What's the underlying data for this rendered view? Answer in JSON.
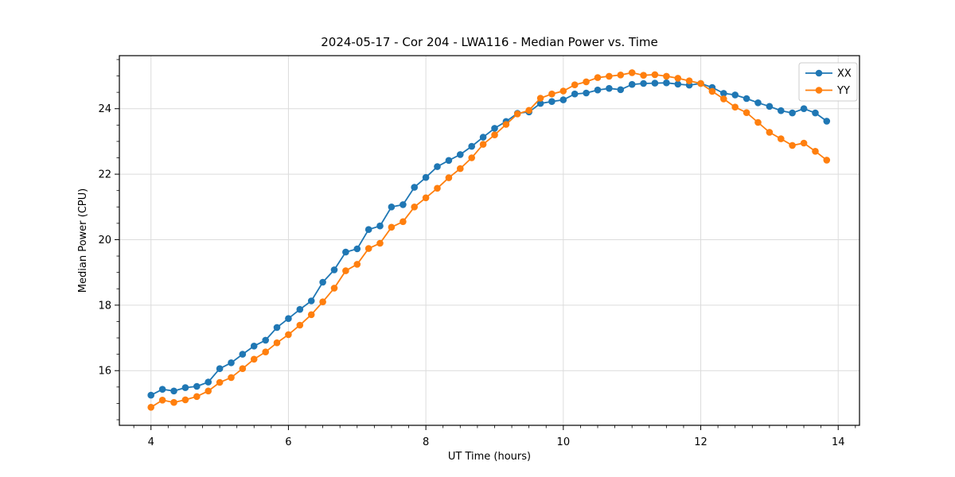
{
  "chart_data": {
    "type": "line",
    "title": "2024-05-17 - Cor 204 - LWA116 - Median Power vs. Time",
    "xlabel": "UT Time (hours)",
    "ylabel": "Median Power (CPU)",
    "xlim": [
      3.54,
      14.31
    ],
    "ylim": [
      14.33,
      25.62
    ],
    "xticks": [
      4,
      6,
      8,
      10,
      12,
      14
    ],
    "yticks": [
      16,
      18,
      20,
      22,
      24
    ],
    "x_minor_step": 0.25,
    "y_minor_step": 0.5,
    "grid": true,
    "legend_position": "upper right",
    "x": [
      4.0,
      4.167,
      4.333,
      4.5,
      4.667,
      4.833,
      5.0,
      5.167,
      5.333,
      5.5,
      5.667,
      5.833,
      6.0,
      6.167,
      6.333,
      6.5,
      6.667,
      6.833,
      7.0,
      7.167,
      7.333,
      7.5,
      7.667,
      7.833,
      8.0,
      8.167,
      8.333,
      8.5,
      8.667,
      8.833,
      9.0,
      9.167,
      9.333,
      9.5,
      9.667,
      9.833,
      10.0,
      10.167,
      10.333,
      10.5,
      10.667,
      10.833,
      11.0,
      11.167,
      11.333,
      11.5,
      11.667,
      11.833,
      12.0,
      12.167,
      12.333,
      12.5,
      12.667,
      12.833,
      13.0,
      13.167,
      13.333,
      13.5,
      13.667,
      13.833
    ],
    "series": [
      {
        "name": "XX",
        "color": "#1f77b4",
        "values": [
          15.25,
          15.43,
          15.38,
          15.48,
          15.52,
          15.65,
          16.06,
          16.24,
          16.5,
          16.75,
          16.93,
          17.32,
          17.59,
          17.87,
          18.13,
          18.7,
          19.08,
          19.62,
          19.72,
          20.31,
          20.42,
          21.0,
          21.07,
          21.6,
          21.9,
          22.23,
          22.42,
          22.6,
          22.85,
          23.13,
          23.4,
          23.61,
          23.86,
          23.9,
          24.16,
          24.22,
          24.27,
          24.45,
          24.48,
          24.57,
          24.62,
          24.58,
          24.74,
          24.77,
          24.78,
          24.79,
          24.75,
          24.72,
          24.77,
          24.65,
          24.47,
          24.42,
          24.31,
          24.18,
          24.07,
          23.94,
          23.87,
          24.0,
          23.87,
          23.62
        ]
      },
      {
        "name": "YY",
        "color": "#ff7f0e",
        "values": [
          14.88,
          15.1,
          15.03,
          15.11,
          15.21,
          15.38,
          15.64,
          15.79,
          16.06,
          16.35,
          16.57,
          16.85,
          17.1,
          17.39,
          17.71,
          18.1,
          18.52,
          19.05,
          19.25,
          19.73,
          19.89,
          20.38,
          20.55,
          21.0,
          21.28,
          21.57,
          21.89,
          22.17,
          22.5,
          22.91,
          23.2,
          23.52,
          23.84,
          23.95,
          24.32,
          24.45,
          24.54,
          24.73,
          24.82,
          24.95,
          24.99,
          25.03,
          25.1,
          25.02,
          25.04,
          24.99,
          24.93,
          24.85,
          24.77,
          24.53,
          24.3,
          24.05,
          23.88,
          23.58,
          23.28,
          23.08,
          22.88,
          22.95,
          22.7,
          22.43
        ]
      }
    ]
  },
  "colors": {
    "background": "#ffffff",
    "spine": "#000000",
    "grid": "#dcdcdc",
    "tick_label": "#000000",
    "legend_border": "#cccccc",
    "series_xx": "#1f77b4",
    "series_yy": "#ff7f0e"
  }
}
